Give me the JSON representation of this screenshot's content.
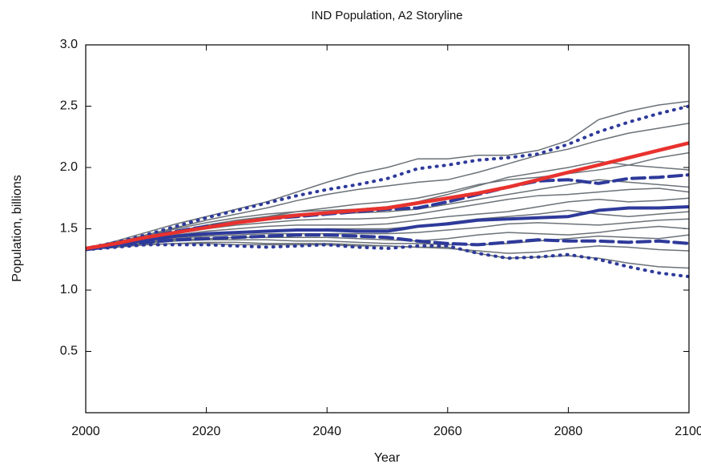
{
  "chart_data": {
    "type": "line",
    "title": "IND Population, A2 Storyline",
    "xlabel": "Year",
    "ylabel": "Population, billions",
    "x": [
      2000,
      2005,
      2010,
      2015,
      2020,
      2025,
      2030,
      2035,
      2040,
      2045,
      2050,
      2055,
      2060,
      2065,
      2070,
      2075,
      2080,
      2085,
      2090,
      2095,
      2100
    ],
    "xlim": [
      2000,
      2100
    ],
    "xticks": [
      2000,
      2020,
      2040,
      2060,
      2080,
      2100
    ],
    "ylim": [
      0,
      3
    ],
    "yticks": [
      0.5,
      {
        "value": 1,
        "label": "1.0"
      },
      1.5,
      {
        "value": 2,
        "label": "2.0"
      },
      2.5,
      {
        "value": 3,
        "label": "3.0"
      }
    ],
    "grid": false,
    "series": [
      {
        "color": "#6b7278",
        "width": 1.5,
        "dash": "solid",
        "values": [
          1.34,
          1.4,
          1.47,
          1.54,
          1.6,
          1.66,
          1.72,
          1.8,
          1.88,
          1.95,
          2.0,
          2.07,
          2.07,
          2.1,
          2.1,
          2.14,
          2.22,
          2.39,
          2.46,
          2.51,
          2.54
        ]
      },
      {
        "color": "#6b7278",
        "width": 1.5,
        "dash": "solid",
        "values": [
          1.34,
          1.39,
          1.45,
          1.51,
          1.57,
          1.62,
          1.67,
          1.73,
          1.78,
          1.82,
          1.85,
          1.88,
          1.9,
          1.96,
          2.03,
          2.1,
          2.15,
          2.22,
          2.28,
          2.32,
          2.36
        ]
      },
      {
        "color": "#6b7278",
        "width": 1.5,
        "dash": "solid",
        "values": [
          1.34,
          1.38,
          1.44,
          1.5,
          1.55,
          1.59,
          1.62,
          1.64,
          1.65,
          1.66,
          1.68,
          1.72,
          1.78,
          1.85,
          1.92,
          1.96,
          2.0,
          2.05,
          2.02,
          2.0,
          1.98
        ]
      },
      {
        "color": "#6b7278",
        "width": 1.5,
        "dash": "solid",
        "values": [
          1.34,
          1.38,
          1.43,
          1.48,
          1.53,
          1.57,
          1.6,
          1.62,
          1.63,
          1.63,
          1.64,
          1.66,
          1.7,
          1.74,
          1.78,
          1.82,
          1.86,
          1.9,
          1.88,
          1.86,
          1.84
        ]
      },
      {
        "color": "#6b7278",
        "width": 1.5,
        "dash": "solid",
        "values": [
          1.34,
          1.37,
          1.42,
          1.46,
          1.5,
          1.53,
          1.55,
          1.57,
          1.58,
          1.58,
          1.59,
          1.62,
          1.66,
          1.7,
          1.74,
          1.77,
          1.78,
          1.8,
          1.82,
          1.83,
          1.8
        ]
      },
      {
        "color": "#6b7278",
        "width": 1.5,
        "dash": "solid",
        "values": [
          1.34,
          1.37,
          1.41,
          1.45,
          1.48,
          1.5,
          1.52,
          1.53,
          1.53,
          1.53,
          1.54,
          1.57,
          1.6,
          1.62,
          1.64,
          1.68,
          1.72,
          1.74,
          1.72,
          1.73,
          1.75
        ]
      },
      {
        "color": "#6b7278",
        "width": 1.5,
        "dash": "solid",
        "values": [
          1.33,
          1.36,
          1.4,
          1.43,
          1.45,
          1.47,
          1.48,
          1.49,
          1.5,
          1.5,
          1.5,
          1.52,
          1.55,
          1.58,
          1.6,
          1.62,
          1.65,
          1.62,
          1.6,
          1.62,
          1.64
        ]
      },
      {
        "color": "#6b7278",
        "width": 1.5,
        "dash": "solid",
        "values": [
          1.33,
          1.36,
          1.39,
          1.42,
          1.44,
          1.45,
          1.46,
          1.46,
          1.46,
          1.46,
          1.46,
          1.47,
          1.49,
          1.51,
          1.54,
          1.55,
          1.54,
          1.53,
          1.55,
          1.57,
          1.58
        ]
      },
      {
        "color": "#6b7278",
        "width": 1.5,
        "dash": "solid",
        "values": [
          1.33,
          1.36,
          1.39,
          1.41,
          1.42,
          1.43,
          1.43,
          1.43,
          1.43,
          1.42,
          1.41,
          1.4,
          1.42,
          1.45,
          1.47,
          1.46,
          1.45,
          1.47,
          1.5,
          1.52,
          1.5
        ]
      },
      {
        "color": "#6b7278",
        "width": 1.5,
        "dash": "solid",
        "values": [
          1.33,
          1.35,
          1.38,
          1.4,
          1.41,
          1.41,
          1.41,
          1.4,
          1.4,
          1.39,
          1.38,
          1.38,
          1.37,
          1.37,
          1.38,
          1.4,
          1.42,
          1.44,
          1.43,
          1.42,
          1.45
        ]
      },
      {
        "color": "#6b7278",
        "width": 1.5,
        "dash": "solid",
        "values": [
          1.33,
          1.35,
          1.37,
          1.38,
          1.39,
          1.39,
          1.38,
          1.38,
          1.38,
          1.37,
          1.36,
          1.35,
          1.34,
          1.32,
          1.3,
          1.31,
          1.34,
          1.36,
          1.35,
          1.33,
          1.32
        ]
      },
      {
        "color": "#6b7278",
        "width": 1.5,
        "dash": "solid",
        "values": [
          1.33,
          1.35,
          1.37,
          1.38,
          1.38,
          1.37,
          1.37,
          1.37,
          1.37,
          1.36,
          1.36,
          1.35,
          1.35,
          1.3,
          1.26,
          1.27,
          1.28,
          1.26,
          1.22,
          1.19,
          1.18
        ]
      },
      {
        "color": "#6b7278",
        "width": 1.5,
        "dash": "solid",
        "values": [
          1.34,
          1.38,
          1.43,
          1.48,
          1.52,
          1.56,
          1.6,
          1.64,
          1.67,
          1.7,
          1.72,
          1.75,
          1.8,
          1.86,
          1.9,
          1.92,
          1.95,
          1.98,
          2.02,
          2.08,
          2.12
        ]
      },
      {
        "color": "#2e3a9a",
        "width": 4,
        "dash": "dotted",
        "values": [
          1.34,
          1.39,
          1.45,
          1.52,
          1.59,
          1.65,
          1.71,
          1.77,
          1.82,
          1.86,
          1.91,
          1.99,
          2.02,
          2.06,
          2.08,
          2.11,
          2.19,
          2.29,
          2.37,
          2.44,
          2.5
        ]
      },
      {
        "color": "#2e3a9a",
        "width": 4,
        "dash": "dotted",
        "values": [
          1.33,
          1.35,
          1.37,
          1.37,
          1.37,
          1.36,
          1.35,
          1.36,
          1.37,
          1.35,
          1.34,
          1.36,
          1.36,
          1.3,
          1.26,
          1.27,
          1.29,
          1.25,
          1.19,
          1.14,
          1.11
        ]
      },
      {
        "color": "#2e3a9a",
        "width": 4,
        "dash": "dashed",
        "values": [
          1.34,
          1.38,
          1.43,
          1.48,
          1.52,
          1.55,
          1.58,
          1.6,
          1.62,
          1.64,
          1.66,
          1.67,
          1.72,
          1.78,
          1.84,
          1.89,
          1.9,
          1.87,
          1.91,
          1.92,
          1.94
        ]
      },
      {
        "color": "#2e3a9a",
        "width": 4,
        "dash": "dashed",
        "values": [
          1.33,
          1.36,
          1.39,
          1.41,
          1.42,
          1.43,
          1.44,
          1.45,
          1.45,
          1.44,
          1.43,
          1.4,
          1.38,
          1.37,
          1.39,
          1.41,
          1.4,
          1.4,
          1.39,
          1.4,
          1.38
        ]
      },
      {
        "color": "#2e3a9a",
        "width": 4,
        "dash": "solid",
        "values": [
          1.34,
          1.37,
          1.41,
          1.44,
          1.46,
          1.47,
          1.48,
          1.49,
          1.49,
          1.48,
          1.48,
          1.52,
          1.54,
          1.57,
          1.58,
          1.59,
          1.6,
          1.65,
          1.67,
          1.67,
          1.68
        ]
      },
      {
        "color": "#e8322e",
        "width": 4.5,
        "dash": "solid",
        "values": [
          1.34,
          1.38,
          1.43,
          1.47,
          1.51,
          1.55,
          1.58,
          1.61,
          1.63,
          1.65,
          1.67,
          1.71,
          1.75,
          1.79,
          1.84,
          1.9,
          1.96,
          2.02,
          2.08,
          2.14,
          2.2
        ]
      }
    ]
  }
}
